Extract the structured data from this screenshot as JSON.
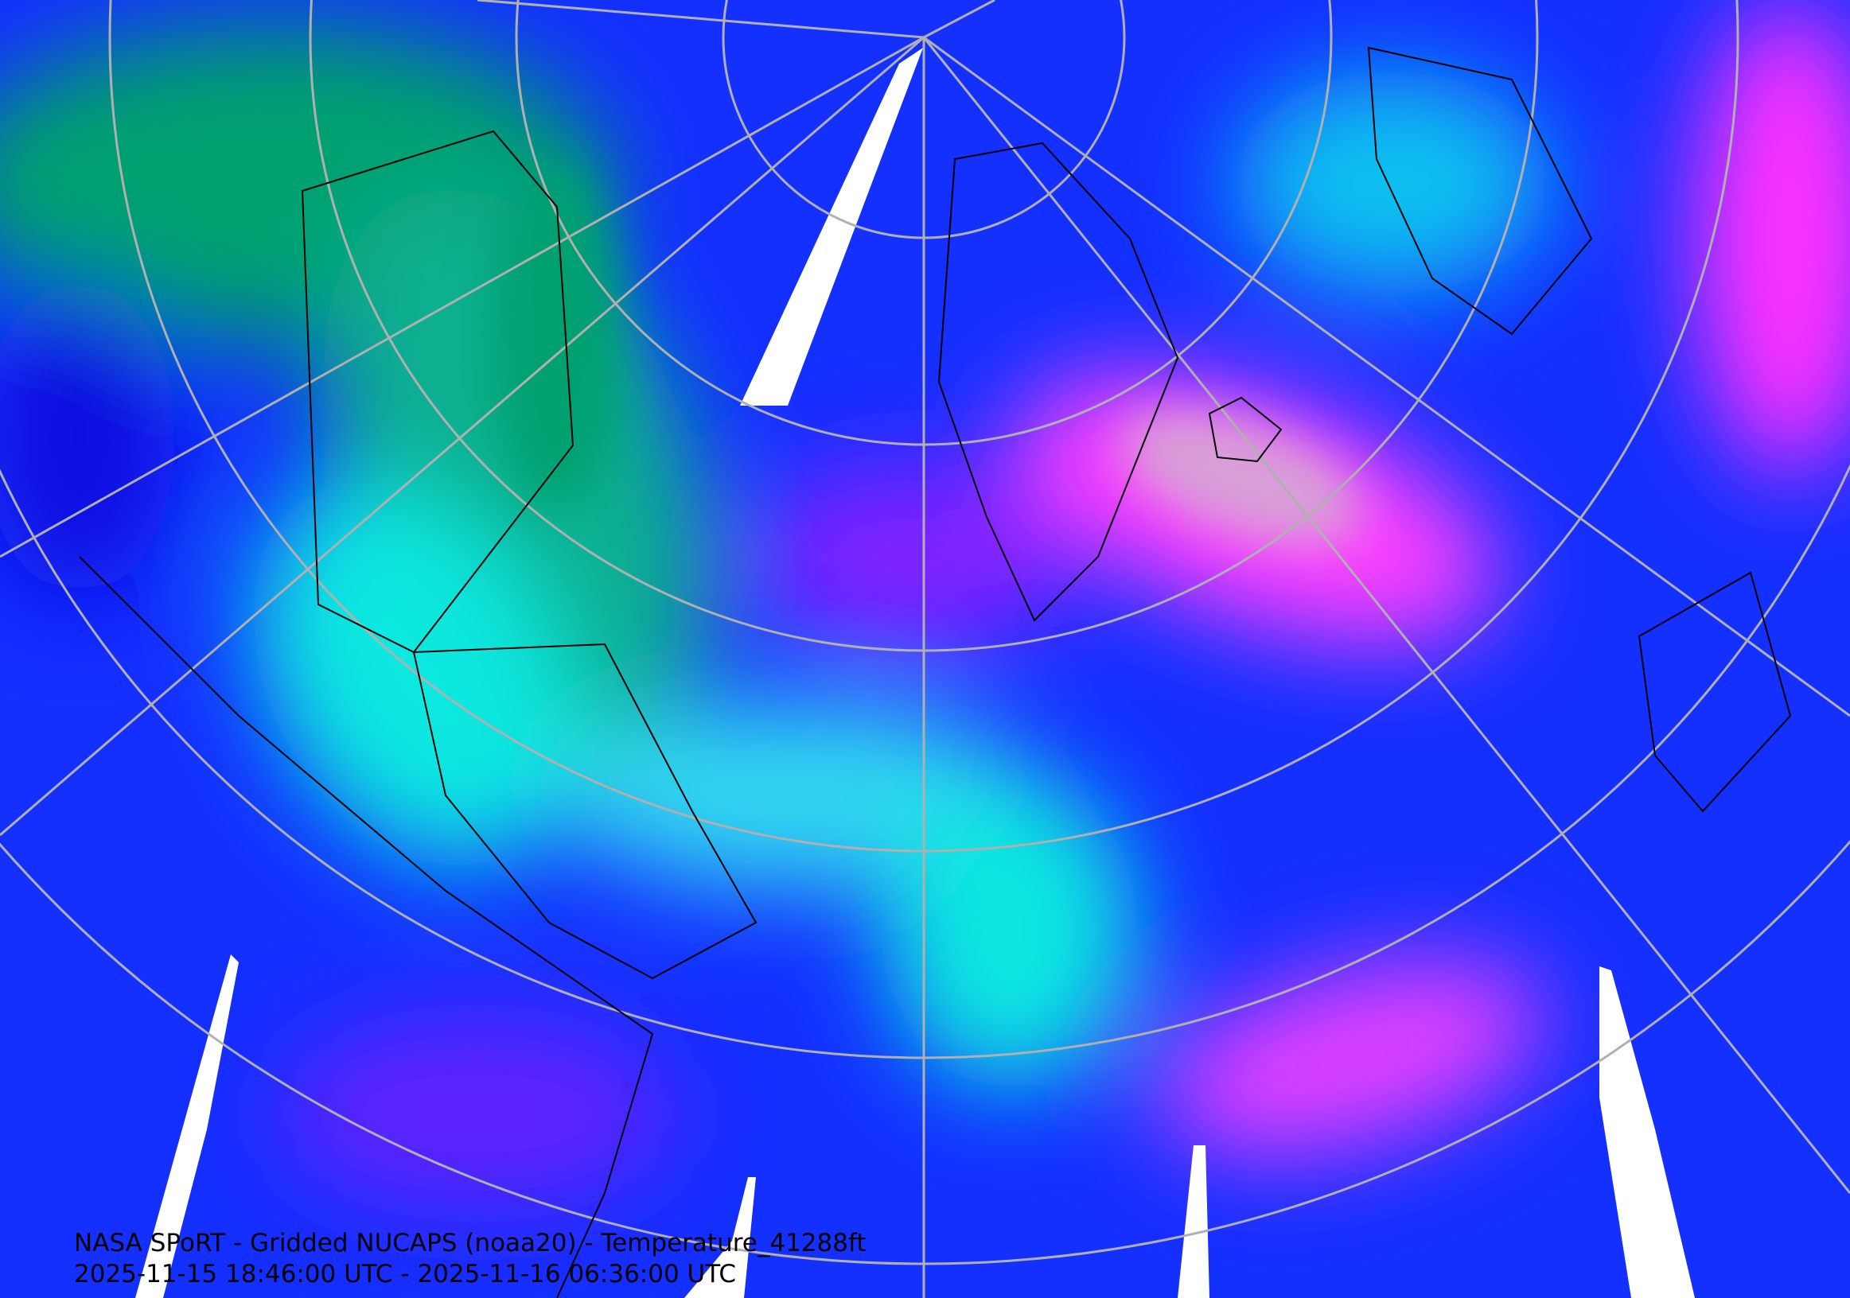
{
  "map": {
    "product_title": "NASA SPoRT - Gridded NUCAPS (noaa20) - Temperature_41288ft",
    "time_range": "2025-11-15 18:46:00 UTC - 2025-11-16 06:36:00 UTC",
    "projection": "north-polar-stereographic",
    "field_colors": {
      "cold_blue": "#1430ff",
      "cyan": "#10e8e0",
      "green": "#00a070",
      "violet": "#7020ff",
      "magenta": "#ff40ff",
      "warm_pink": "#d8a0d8",
      "missing": "#ffffff",
      "graticule": "#b0b0b0",
      "coastline": "#000000"
    }
  }
}
